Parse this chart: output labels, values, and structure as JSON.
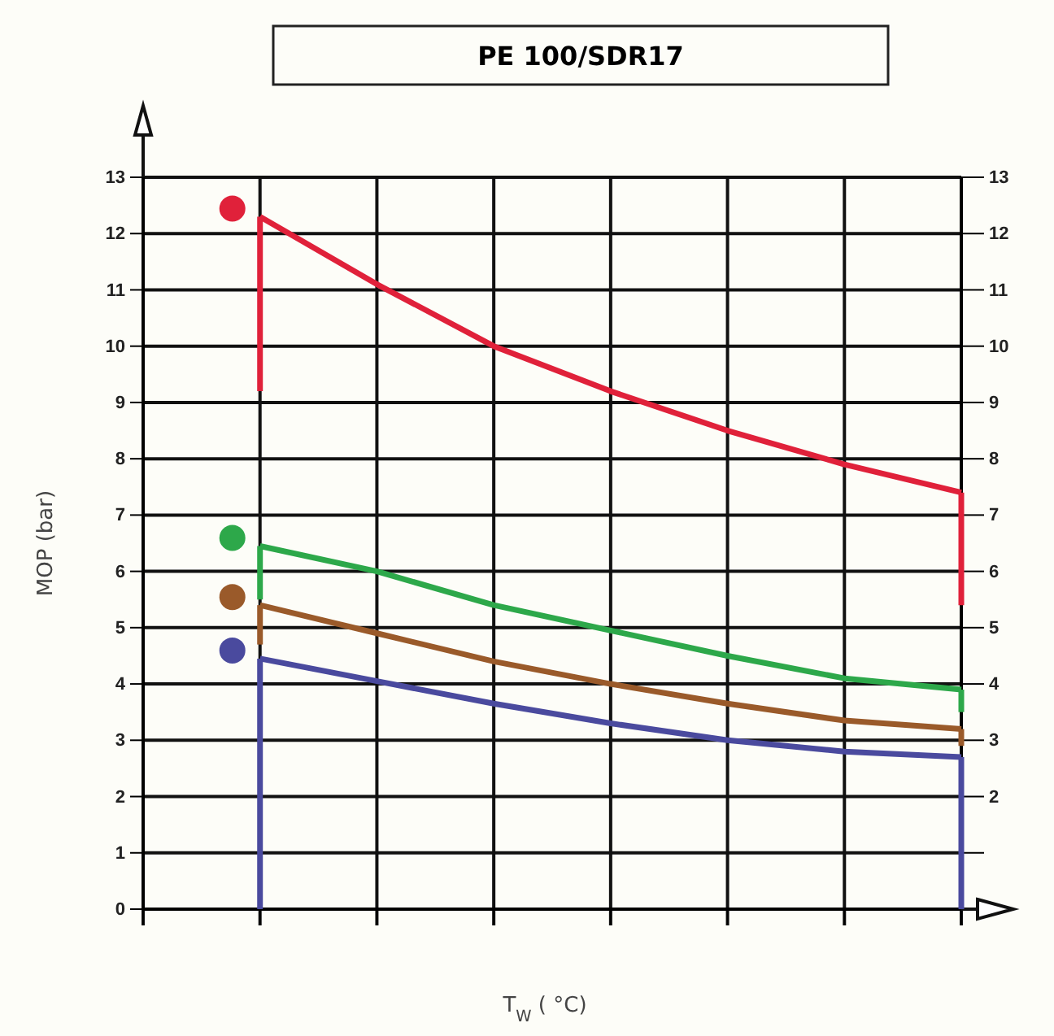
{
  "chart_data": {
    "type": "line",
    "title": "PE 100/SDR17",
    "xlabel": "T$_{W}$ ( °C)",
    "ylabel": "MOP  (bar)",
    "categories": [
      null,
      null,
      null,
      null,
      null,
      null,
      null,
      null
    ],
    "series": [
      {
        "color": "#e0213a",
        "values": [
          null,
          12.3,
          11.1,
          10.0,
          9.2,
          8.5,
          7.9,
          7.4
        ],
        "errors": [
          null,
          [
            9.2,
            12.3
          ],
          null,
          null,
          null,
          null,
          null,
          [
            5.4,
            7.4
          ]
        ]
      },
      {
        "color": "#2da84a",
        "values": [
          null,
          6.45,
          6.0,
          5.4,
          4.95,
          4.5,
          4.1,
          3.9
        ],
        "errors": [
          null,
          [
            5.5,
            6.45
          ],
          null,
          null,
          null,
          null,
          null,
          [
            3.5,
            3.9
          ]
        ]
      },
      {
        "color": "#9a5a2a",
        "values": [
          null,
          5.4,
          4.9,
          4.4,
          4.0,
          3.65,
          3.35,
          3.2
        ],
        "errors": [
          null,
          [
            4.7,
            5.4
          ],
          null,
          null,
          null,
          null,
          null,
          [
            2.9,
            3.2
          ]
        ]
      },
      {
        "color": "#4a4a9e",
        "values": [
          null,
          4.45,
          4.05,
          3.65,
          3.3,
          3.0,
          2.8,
          2.7
        ],
        "errors": [
          null,
          [
            0,
            4.45
          ],
          null,
          null,
          null,
          null,
          null,
          [
            0,
            2.7
          ]
        ]
      }
    ],
    "ylim": [
      0,
      13
    ],
    "yticks": [
      0,
      1,
      2,
      3,
      4,
      5,
      6,
      7,
      8,
      9,
      10,
      11,
      12,
      13
    ],
    "y2lim": [
      0,
      13
    ],
    "y2ticks": [
      {
        "value": 0,
        "label": null
      },
      {
        "value": 1,
        "label": null
      },
      2,
      3,
      4,
      5,
      6,
      7,
      8,
      9,
      10,
      11,
      12,
      13
    ],
    "grid": true,
    "marker": "none",
    "line_style": "solid"
  }
}
